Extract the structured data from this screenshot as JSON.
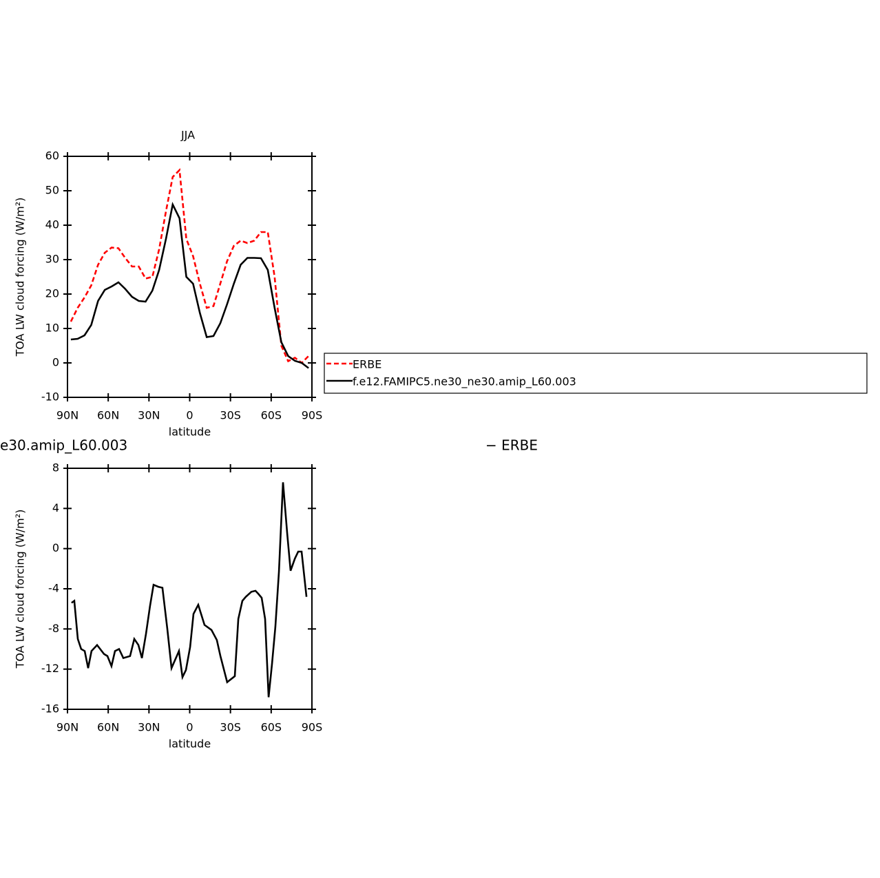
{
  "chart_data": [
    {
      "type": "line",
      "title": "JJA",
      "xlabel": "latitude",
      "ylabel": "TOA LW cloud forcing (W/m²)",
      "x": [
        87.5,
        82.5,
        77.5,
        72.5,
        67.5,
        62.5,
        57.5,
        52.5,
        47.5,
        42.5,
        37.5,
        32.5,
        27.5,
        22.5,
        17.5,
        12.5,
        7.5,
        2.5,
        -2.5,
        -7.5,
        -12.5,
        -17.5,
        -22.5,
        -27.5,
        -32.5,
        -37.5,
        -42.5,
        -47.5,
        -52.5,
        -57.5,
        -62.5,
        -67.5,
        -72.5,
        -77.5,
        -82.5,
        -87.5
      ],
      "series": [
        {
          "name": "ERBE",
          "color": "#ff0000",
          "line_style": "dashed",
          "values": [
            12,
            16,
            19,
            22.5,
            28.5,
            32,
            33.5,
            33.3,
            30.5,
            28,
            28,
            24.5,
            25,
            33,
            44,
            54,
            56,
            36,
            31,
            23,
            16,
            16.5,
            23,
            29.5,
            34,
            35.5,
            34.8,
            35.5,
            38,
            38,
            25,
            5,
            0.5,
            1.5,
            0,
            2
          ]
        },
        {
          "name": "f.e12.FAMIPC5.ne30_ne30.amip_L60.003",
          "color": "#000000",
          "line_style": "solid",
          "values": [
            6.8,
            7,
            8,
            11,
            18,
            21.2,
            22.2,
            23.4,
            21.5,
            19.2,
            18,
            17.8,
            21,
            27,
            36,
            46,
            42,
            25,
            23,
            14.5,
            7.5,
            7.8,
            11.5,
            17,
            23,
            28.5,
            30.5,
            30.5,
            30.4,
            27,
            16,
            6,
            2,
            0.6,
            0,
            -1.5
          ]
        }
      ],
      "xlim": [
        90,
        -90
      ],
      "xticks": [
        {
          "value": 90,
          "label": "90N"
        },
        {
          "value": 60,
          "label": "60N"
        },
        {
          "value": 30,
          "label": "30N"
        },
        0,
        {
          "value": -30,
          "label": "30S"
        },
        {
          "value": -60,
          "label": "60S"
        },
        {
          "value": -90,
          "label": "90S"
        }
      ],
      "ylim": [
        -10,
        60
      ],
      "yticks": [
        -10,
        0,
        10,
        20,
        30,
        40,
        50,
        60
      ],
      "legend": "right"
    },
    {
      "type": "line",
      "title_left": "e30.amip_L60.003",
      "title_right": "− ERBE",
      "xlabel": "latitude",
      "ylabel": "TOA LW cloud forcing (W/m²)",
      "x": [
        87,
        85,
        82.4,
        79.9,
        77.3,
        74.8,
        72.3,
        68.2,
        63.1,
        60.6,
        57.6,
        55,
        52,
        48.9,
        43.9,
        40.8,
        37.8,
        35.2,
        32.2,
        29.2,
        26.6,
        23.1,
        20.1,
        16.5,
        13.4,
        7.9,
        5.3,
        2.8,
        -0.3,
        -2.8,
        -6.3,
        -10.9,
        -16,
        -20,
        -22.6,
        -27.6,
        -33.2,
        -35.8,
        -38.8,
        -41.3,
        -45.4,
        -48.4,
        -50.5,
        -53,
        -55.5,
        -58.1,
        -60.6,
        -63.1,
        -65.7,
        -68.7,
        -71.8,
        -74.3,
        -77.4,
        -79.9,
        -82.4,
        -86
      ],
      "series": [
        {
          "color": "#000000",
          "line_style": "solid",
          "values": [
            -5.4,
            -5.2,
            -9,
            -10,
            -10.2,
            -11.9,
            -10.2,
            -9.6,
            -10.5,
            -10.7,
            -11.7,
            -10.2,
            -10,
            -10.9,
            -10.7,
            -9,
            -9.6,
            -10.9,
            -8.5,
            -5.7,
            -3.6,
            -3.8,
            -3.9,
            -8,
            -11.9,
            -10.2,
            -12.8,
            -12.1,
            -9.8,
            -6.5,
            -5.6,
            -7.6,
            -8.1,
            -9.1,
            -10.7,
            -13.3,
            -12.7,
            -7,
            -5.2,
            -4.8,
            -4.3,
            -4.2,
            -4.5,
            -4.9,
            -7,
            -14.8,
            -11.5,
            -7.8,
            -2.3,
            6.6,
            1.5,
            -2.2,
            -1,
            -0.3,
            -0.3,
            -4.8
          ]
        }
      ],
      "xlim": [
        90,
        -90
      ],
      "xticks": [
        {
          "value": 90,
          "label": "90N"
        },
        {
          "value": 60,
          "label": "60N"
        },
        {
          "value": 30,
          "label": "30N"
        },
        0,
        {
          "value": -30,
          "label": "30S"
        },
        {
          "value": -60,
          "label": "60S"
        },
        {
          "value": -90,
          "label": "90S"
        }
      ],
      "ylim": [
        -16,
        8
      ],
      "yticks": [
        -16,
        -12,
        -8,
        -4,
        0,
        4,
        8
      ]
    }
  ]
}
